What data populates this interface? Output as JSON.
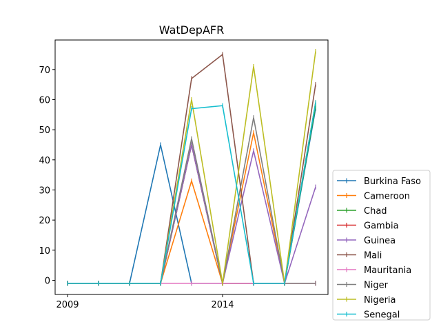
{
  "chart_data": {
    "type": "line",
    "title": "WatDepAFR",
    "xlabel": "",
    "ylabel": "",
    "x": [
      2009,
      2010,
      2011,
      2012,
      2013,
      2014,
      2015,
      2016,
      2017
    ],
    "x_ticks": [
      "2009",
      "2014"
    ],
    "y_ticks": [
      "0",
      "10",
      "20",
      "30",
      "40",
      "50",
      "60",
      "70"
    ],
    "ylim": [
      -4.7,
      79.8
    ],
    "xlim": [
      2008.6,
      2017.4
    ],
    "grid": false,
    "legend_position": "lower-right-outside",
    "series": [
      {
        "name": "Burkina Faso",
        "color": "#1f77b4",
        "values": [
          -1,
          -1,
          -1,
          45,
          -1,
          -1,
          -1,
          -1,
          57
        ]
      },
      {
        "name": "Cameroon",
        "color": "#ff7f0e",
        "values": [
          -1,
          -1,
          -1,
          -1,
          33,
          -1,
          49,
          -1,
          59
        ]
      },
      {
        "name": "Chad",
        "color": "#2ca02c",
        "values": [
          -1,
          -1,
          -1,
          -1,
          45,
          -1,
          -1,
          -1,
          58
        ]
      },
      {
        "name": "Gambia",
        "color": "#d62728",
        "values": [
          -1,
          -1,
          -1,
          -1,
          45,
          -1,
          -1,
          -1,
          -1
        ]
      },
      {
        "name": "Guinea",
        "color": "#9467bd",
        "values": [
          -1,
          -1,
          -1,
          -1,
          45,
          -1,
          43,
          -1,
          31
        ]
      },
      {
        "name": "Mali",
        "color": "#8c564b",
        "values": [
          -1,
          -1,
          -1,
          -1,
          67,
          75,
          -1,
          -1,
          65
        ]
      },
      {
        "name": "Mauritania",
        "color": "#e377c2",
        "values": [
          -1,
          -1,
          -1,
          -1,
          -1,
          -1,
          -1,
          -1,
          -1
        ]
      },
      {
        "name": "Niger",
        "color": "#7f7f7f",
        "values": [
          -1,
          -1,
          -1,
          -1,
          47,
          -1,
          54,
          -1,
          -1
        ]
      },
      {
        "name": "Nigeria",
        "color": "#bcbd22",
        "values": [
          -1,
          -1,
          -1,
          -1,
          60,
          -1,
          71,
          -1,
          76
        ]
      },
      {
        "name": "Senegal",
        "color": "#17becf",
        "values": [
          -1,
          -1,
          -1,
          -1,
          57,
          58,
          -1,
          -1,
          59
        ]
      }
    ]
  }
}
